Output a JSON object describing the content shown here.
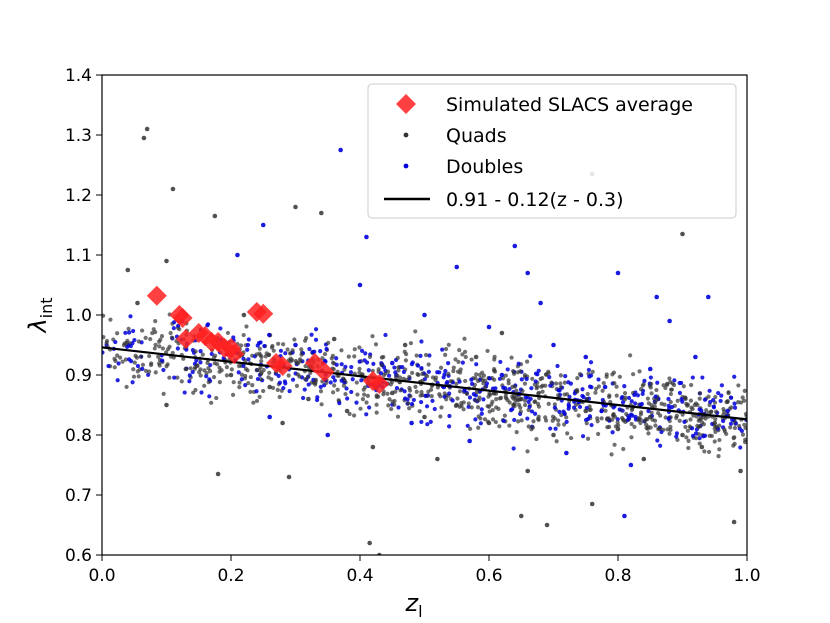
{
  "chart_data": {
    "type": "scatter",
    "title": "",
    "xlabel": "z",
    "xlabel_sub": "l",
    "ylabel": "λ",
    "ylabel_sub": "int",
    "xlim": [
      0.0,
      1.0
    ],
    "ylim": [
      0.6,
      1.4
    ],
    "xticks": [
      "0.0",
      "0.2",
      "0.4",
      "0.6",
      "0.8",
      "1.0"
    ],
    "yticks": [
      "0.6",
      "0.7",
      "0.8",
      "0.9",
      "1.0",
      "1.1",
      "1.2",
      "1.3",
      "1.4"
    ],
    "legend_position": "top-right",
    "colors": {
      "slacs": "#ff2020",
      "quads": "#333333",
      "doubles": "#0000dd",
      "fit": "#000000"
    },
    "series": [
      {
        "name": "Simulated SLACS average",
        "marker": "diamond",
        "points": [
          [
            0.085,
            1.032
          ],
          [
            0.12,
            1.0
          ],
          [
            0.125,
            0.995
          ],
          [
            0.13,
            0.96
          ],
          [
            0.15,
            0.97
          ],
          [
            0.16,
            0.965
          ],
          [
            0.17,
            0.955
          ],
          [
            0.18,
            0.955
          ],
          [
            0.19,
            0.945
          ],
          [
            0.2,
            0.945
          ],
          [
            0.205,
            0.935
          ],
          [
            0.24,
            1.005
          ],
          [
            0.25,
            1.002
          ],
          [
            0.27,
            0.92
          ],
          [
            0.28,
            0.915
          ],
          [
            0.33,
            0.92
          ],
          [
            0.345,
            0.905
          ],
          [
            0.42,
            0.89
          ],
          [
            0.43,
            0.885
          ]
        ]
      },
      {
        "name": "Quads",
        "marker": "dot",
        "points": [
          [
            0.07,
            1.31
          ],
          [
            0.065,
            1.295
          ],
          [
            0.11,
            1.21
          ],
          [
            0.175,
            1.165
          ],
          [
            0.04,
            1.075
          ],
          [
            0.055,
            1.02
          ],
          [
            0.1,
            1.09
          ],
          [
            0.3,
            1.18
          ],
          [
            0.34,
            1.17
          ],
          [
            0.43,
            0.6
          ],
          [
            0.415,
            0.62
          ],
          [
            0.69,
            0.65
          ],
          [
            0.76,
            0.685
          ],
          [
            0.65,
            0.665
          ],
          [
            0.18,
            0.735
          ],
          [
            0.29,
            0.73
          ],
          [
            0.98,
            0.655
          ],
          [
            0.9,
            1.135
          ],
          [
            0.76,
            1.235
          ],
          [
            0.1,
            0.85
          ],
          [
            0.13,
            0.91
          ],
          [
            0.2,
            0.9
          ],
          [
            0.26,
            0.88
          ],
          [
            0.32,
            0.86
          ],
          [
            0.38,
            0.84
          ],
          [
            0.45,
            0.87
          ],
          [
            0.5,
            0.83
          ],
          [
            0.55,
            0.85
          ],
          [
            0.6,
            0.82
          ],
          [
            0.65,
            0.86
          ],
          [
            0.7,
            0.8
          ],
          [
            0.75,
            0.84
          ],
          [
            0.8,
            0.81
          ],
          [
            0.85,
            0.83
          ],
          [
            0.9,
            0.8
          ],
          [
            0.95,
            0.82
          ],
          [
            0.99,
            0.74
          ],
          [
            0.47,
            0.95
          ],
          [
            0.58,
            0.93
          ],
          [
            0.62,
            0.97
          ],
          [
            0.22,
            1.0
          ],
          [
            0.36,
            0.96
          ],
          [
            0.42,
            0.78
          ],
          [
            0.52,
            0.76
          ],
          [
            0.66,
            0.74
          ],
          [
            0.84,
            0.76
          ],
          [
            0.93,
            0.78
          ],
          [
            0.28,
            0.82
          ]
        ]
      },
      {
        "name": "Doubles",
        "marker": "dot",
        "points": [
          [
            0.37,
            1.275
          ],
          [
            0.25,
            1.15
          ],
          [
            0.41,
            1.13
          ],
          [
            0.64,
            1.115
          ],
          [
            0.86,
            1.03
          ],
          [
            0.94,
            1.03
          ],
          [
            0.21,
            1.1
          ],
          [
            0.55,
            1.08
          ],
          [
            0.66,
            1.07
          ],
          [
            0.8,
            1.07
          ],
          [
            0.5,
            1.0
          ],
          [
            0.6,
            0.98
          ],
          [
            0.7,
            0.95
          ],
          [
            0.75,
            0.93
          ],
          [
            0.85,
            0.91
          ],
          [
            0.92,
            0.93
          ],
          [
            0.45,
            0.92
          ],
          [
            0.3,
            0.95
          ],
          [
            0.26,
            0.83
          ],
          [
            0.35,
            0.8
          ],
          [
            0.48,
            0.82
          ],
          [
            0.57,
            0.79
          ],
          [
            0.72,
            0.77
          ],
          [
            0.82,
            0.75
          ],
          [
            0.62,
            0.9
          ],
          [
            0.78,
            0.88
          ],
          [
            0.97,
            0.84
          ],
          [
            0.53,
            0.88
          ],
          [
            0.81,
            0.665
          ],
          [
            0.4,
            1.05
          ],
          [
            0.68,
            1.02
          ],
          [
            0.88,
            0.99
          ]
        ]
      },
      {
        "name": "0.91 - 0.12(z - 0.3)",
        "marker": "line",
        "points": [
          [
            0.0,
            0.946
          ],
          [
            1.0,
            0.826
          ]
        ]
      }
    ]
  }
}
